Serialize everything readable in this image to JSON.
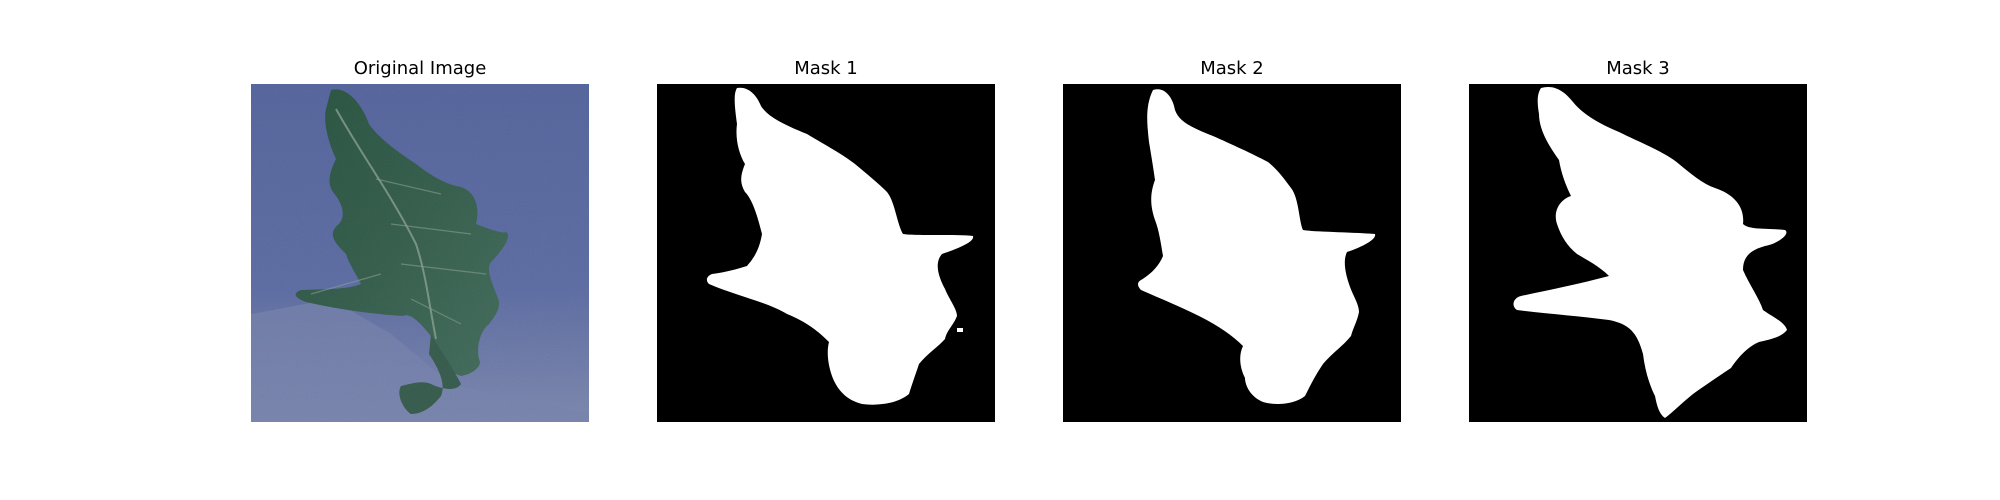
{
  "figure": {
    "panels": [
      {
        "title": "Original Image"
      },
      {
        "title": "Mask 1"
      },
      {
        "title": "Mask 2"
      },
      {
        "title": "Mask 3"
      }
    ]
  },
  "colors": {
    "background": "#6271a8",
    "leaf": "#355d4c",
    "mask_background": "#000000",
    "mask_foreground": "#ffffff"
  }
}
